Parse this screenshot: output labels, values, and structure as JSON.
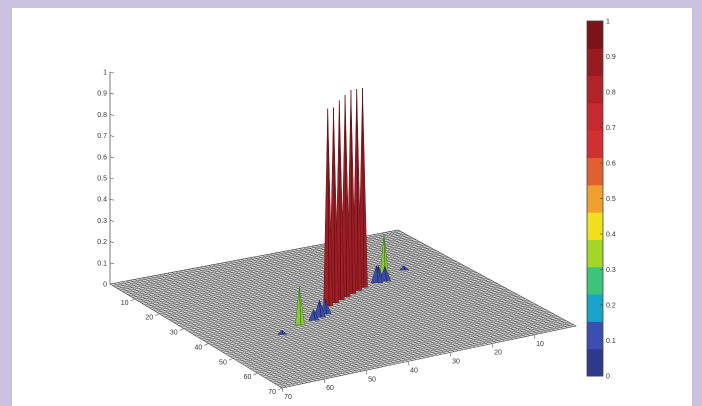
{
  "chart_data": {
    "type": "surface3d",
    "title": "",
    "xlabel": "",
    "ylabel": "",
    "zlabel": "",
    "z_ticks": [
      "0",
      "0.1",
      "0.2",
      "0.3",
      "0.4",
      "0.5",
      "0.6",
      "0.7",
      "0.8",
      "0.9",
      "1"
    ],
    "zlim": [
      0,
      1
    ],
    "left_axis_ticks": [
      "10",
      "20",
      "30",
      "40",
      "50",
      "60",
      "70"
    ],
    "front_axis_ticks": [
      "70",
      "60",
      "50",
      "40",
      "30",
      "20",
      "10"
    ],
    "colorbar": {
      "ticks": [
        "0",
        "0.1",
        "0.2",
        "0.3",
        "0.4",
        "0.5",
        "0.6",
        "0.7",
        "0.8",
        "0.9",
        "1"
      ],
      "colors": [
        "#2e3a8c",
        "#3b4fb0",
        "#1aa3c8",
        "#3cc47a",
        "#a6d52a",
        "#f0e020",
        "#f0a030",
        "#e06030",
        "#d03030",
        "#c42a30",
        "#b22228",
        "#961c22",
        "#7a1418"
      ]
    },
    "peaks": [
      {
        "row": 33,
        "col": 33,
        "z": 0.93
      },
      {
        "row": 32,
        "col": 35,
        "z": 0.92
      },
      {
        "row": 31,
        "col": 37,
        "z": 0.94
      },
      {
        "row": 30,
        "col": 39,
        "z": 0.95
      },
      {
        "row": 29,
        "col": 41,
        "z": 0.96
      },
      {
        "row": 28,
        "col": 43,
        "z": 0.95
      },
      {
        "row": 27,
        "col": 45,
        "z": 0.94
      },
      {
        "row": 24,
        "col": 52,
        "z": 0.2
      },
      {
        "row": 40,
        "col": 22,
        "z": 0.18
      },
      {
        "row": 26,
        "col": 49,
        "z": 0.08
      },
      {
        "row": 25,
        "col": 50,
        "z": 0.07
      },
      {
        "row": 26,
        "col": 51,
        "z": 0.07
      },
      {
        "row": 38,
        "col": 28,
        "z": 0.08
      },
      {
        "row": 37,
        "col": 30,
        "z": 0.07
      },
      {
        "row": 39,
        "col": 26,
        "z": 0.05
      },
      {
        "row": 43,
        "col": 16,
        "z": 0.02
      },
      {
        "row": 22,
        "col": 58,
        "z": 0.02
      }
    ]
  }
}
